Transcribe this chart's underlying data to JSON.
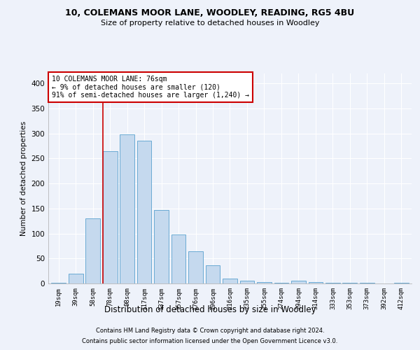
{
  "title1": "10, COLEMANS MOOR LANE, WOODLEY, READING, RG5 4BU",
  "title2": "Size of property relative to detached houses in Woodley",
  "xlabel": "Distribution of detached houses by size in Woodley",
  "ylabel": "Number of detached properties",
  "footer1": "Contains HM Land Registry data © Crown copyright and database right 2024.",
  "footer2": "Contains public sector information licensed under the Open Government Licence v3.0.",
  "annotation_line1": "10 COLEMANS MOOR LANE: 76sqm",
  "annotation_line2": "← 9% of detached houses are smaller (120)",
  "annotation_line3": "91% of semi-detached houses are larger (1,240) →",
  "categories": [
    "19sqm",
    "39sqm",
    "58sqm",
    "78sqm",
    "98sqm",
    "117sqm",
    "137sqm",
    "157sqm",
    "176sqm",
    "196sqm",
    "216sqm",
    "235sqm",
    "255sqm",
    "274sqm",
    "294sqm",
    "314sqm",
    "333sqm",
    "353sqm",
    "373sqm",
    "392sqm",
    "412sqm"
  ],
  "values": [
    2,
    20,
    130,
    265,
    298,
    285,
    147,
    98,
    65,
    37,
    10,
    5,
    3,
    2,
    5,
    3,
    1,
    2,
    1,
    0,
    2
  ],
  "bar_color": "#c5d9ee",
  "bar_edge_color": "#6aaad4",
  "vline_color": "#cc0000",
  "vline_x": 2.575,
  "annotation_box_color": "#cc0000",
  "background_color": "#eef2fa",
  "grid_color": "#ffffff",
  "ylim": [
    0,
    420
  ],
  "yticks": [
    0,
    50,
    100,
    150,
    200,
    250,
    300,
    350,
    400
  ]
}
